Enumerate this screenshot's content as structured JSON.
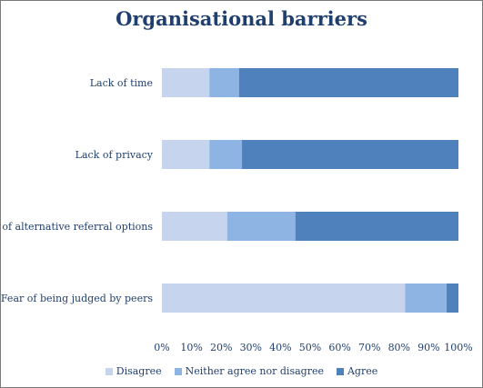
{
  "chart_data": {
    "type": "bar",
    "orientation": "horizontal",
    "stacked": true,
    "title": "Organisational barriers",
    "categories": [
      "Lack of time",
      "Lack of privacy",
      "Lack of alternative referral options",
      "Fear of being judged by peers"
    ],
    "series": [
      {
        "name": "Disagree",
        "color": "#c6d5ed",
        "values": [
          16,
          16,
          22,
          82
        ]
      },
      {
        "name": "Neither agree nor disagree",
        "color": "#8eb4e3",
        "values": [
          10,
          11,
          23,
          14
        ]
      },
      {
        "name": "Agree",
        "color": "#4f81bd",
        "values": [
          74,
          73,
          55,
          4
        ]
      }
    ],
    "xlim": [
      0,
      100
    ],
    "x_ticks": [
      "0%",
      "10%",
      "20%",
      "30%",
      "40%",
      "50%",
      "60%",
      "70%",
      "80%",
      "90%",
      "100%"
    ],
    "grid": false,
    "legend_position": "bottom"
  }
}
